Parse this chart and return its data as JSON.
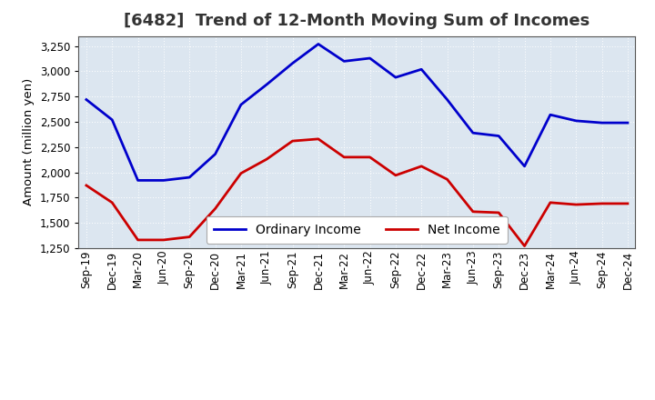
{
  "title": "[6482]  Trend of 12-Month Moving Sum of Incomes",
  "ylabel": "Amount (million yen)",
  "background_color": "#ffffff",
  "plot_bg_color": "#dce6f0",
  "grid_color": "#ffffff",
  "ylim": [
    1250,
    3350
  ],
  "yticks": [
    1250,
    1500,
    1750,
    2000,
    2250,
    2500,
    2750,
    3000,
    3250
  ],
  "labels": [
    "Sep-19",
    "Dec-19",
    "Mar-20",
    "Jun-20",
    "Sep-20",
    "Dec-20",
    "Mar-21",
    "Jun-21",
    "Sep-21",
    "Dec-21",
    "Mar-22",
    "Jun-22",
    "Sep-22",
    "Dec-22",
    "Mar-23",
    "Jun-23",
    "Sep-23",
    "Dec-23",
    "Mar-24",
    "Jun-24",
    "Sep-24",
    "Dec-24"
  ],
  "ordinary_income": [
    2720,
    2520,
    1920,
    1920,
    1950,
    2180,
    2670,
    2870,
    3080,
    3270,
    3100,
    3130,
    2940,
    3020,
    2720,
    2390,
    2360,
    2060,
    2570,
    2510,
    2490,
    2490
  ],
  "net_income": [
    1870,
    1700,
    1330,
    1330,
    1360,
    1640,
    1990,
    2130,
    2310,
    2330,
    2150,
    2150,
    1970,
    2060,
    1930,
    1610,
    1600,
    1270,
    1700,
    1680,
    1690,
    1690
  ],
  "ordinary_color": "#0000cc",
  "net_color": "#cc0000",
  "line_width": 2.0,
  "title_fontsize": 13,
  "legend_fontsize": 10,
  "tick_fontsize": 8.5
}
